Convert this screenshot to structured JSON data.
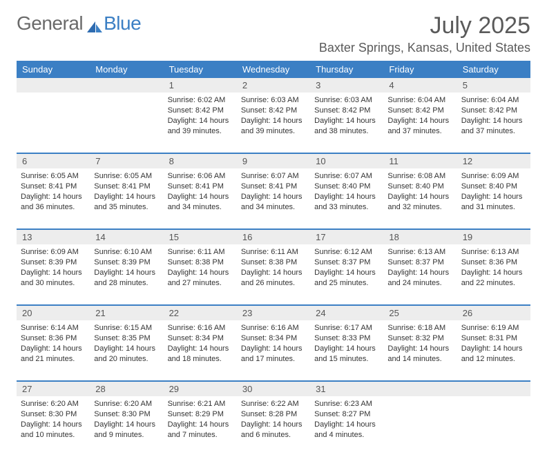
{
  "brand": {
    "word1": "General",
    "word2": "Blue"
  },
  "title": "July 2025",
  "location": "Baxter Springs, Kansas, United States",
  "colors": {
    "header_bg": "#3b7fc4",
    "header_text": "#ffffff",
    "daynum_bg": "#ededed",
    "row_divider": "#3b7fc4",
    "body_text": "#333333",
    "title_text": "#5a5a5a"
  },
  "day_headers": [
    "Sunday",
    "Monday",
    "Tuesday",
    "Wednesday",
    "Thursday",
    "Friday",
    "Saturday"
  ],
  "weeks": [
    [
      null,
      null,
      {
        "n": "1",
        "sunrise": "6:02 AM",
        "sunset": "8:42 PM",
        "daylight": "14 hours and 39 minutes."
      },
      {
        "n": "2",
        "sunrise": "6:03 AM",
        "sunset": "8:42 PM",
        "daylight": "14 hours and 39 minutes."
      },
      {
        "n": "3",
        "sunrise": "6:03 AM",
        "sunset": "8:42 PM",
        "daylight": "14 hours and 38 minutes."
      },
      {
        "n": "4",
        "sunrise": "6:04 AM",
        "sunset": "8:42 PM",
        "daylight": "14 hours and 37 minutes."
      },
      {
        "n": "5",
        "sunrise": "6:04 AM",
        "sunset": "8:42 PM",
        "daylight": "14 hours and 37 minutes."
      }
    ],
    [
      {
        "n": "6",
        "sunrise": "6:05 AM",
        "sunset": "8:41 PM",
        "daylight": "14 hours and 36 minutes."
      },
      {
        "n": "7",
        "sunrise": "6:05 AM",
        "sunset": "8:41 PM",
        "daylight": "14 hours and 35 minutes."
      },
      {
        "n": "8",
        "sunrise": "6:06 AM",
        "sunset": "8:41 PM",
        "daylight": "14 hours and 34 minutes."
      },
      {
        "n": "9",
        "sunrise": "6:07 AM",
        "sunset": "8:41 PM",
        "daylight": "14 hours and 34 minutes."
      },
      {
        "n": "10",
        "sunrise": "6:07 AM",
        "sunset": "8:40 PM",
        "daylight": "14 hours and 33 minutes."
      },
      {
        "n": "11",
        "sunrise": "6:08 AM",
        "sunset": "8:40 PM",
        "daylight": "14 hours and 32 minutes."
      },
      {
        "n": "12",
        "sunrise": "6:09 AM",
        "sunset": "8:40 PM",
        "daylight": "14 hours and 31 minutes."
      }
    ],
    [
      {
        "n": "13",
        "sunrise": "6:09 AM",
        "sunset": "8:39 PM",
        "daylight": "14 hours and 30 minutes."
      },
      {
        "n": "14",
        "sunrise": "6:10 AM",
        "sunset": "8:39 PM",
        "daylight": "14 hours and 28 minutes."
      },
      {
        "n": "15",
        "sunrise": "6:11 AM",
        "sunset": "8:38 PM",
        "daylight": "14 hours and 27 minutes."
      },
      {
        "n": "16",
        "sunrise": "6:11 AM",
        "sunset": "8:38 PM",
        "daylight": "14 hours and 26 minutes."
      },
      {
        "n": "17",
        "sunrise": "6:12 AM",
        "sunset": "8:37 PM",
        "daylight": "14 hours and 25 minutes."
      },
      {
        "n": "18",
        "sunrise": "6:13 AM",
        "sunset": "8:37 PM",
        "daylight": "14 hours and 24 minutes."
      },
      {
        "n": "19",
        "sunrise": "6:13 AM",
        "sunset": "8:36 PM",
        "daylight": "14 hours and 22 minutes."
      }
    ],
    [
      {
        "n": "20",
        "sunrise": "6:14 AM",
        "sunset": "8:36 PM",
        "daylight": "14 hours and 21 minutes."
      },
      {
        "n": "21",
        "sunrise": "6:15 AM",
        "sunset": "8:35 PM",
        "daylight": "14 hours and 20 minutes."
      },
      {
        "n": "22",
        "sunrise": "6:16 AM",
        "sunset": "8:34 PM",
        "daylight": "14 hours and 18 minutes."
      },
      {
        "n": "23",
        "sunrise": "6:16 AM",
        "sunset": "8:34 PM",
        "daylight": "14 hours and 17 minutes."
      },
      {
        "n": "24",
        "sunrise": "6:17 AM",
        "sunset": "8:33 PM",
        "daylight": "14 hours and 15 minutes."
      },
      {
        "n": "25",
        "sunrise": "6:18 AM",
        "sunset": "8:32 PM",
        "daylight": "14 hours and 14 minutes."
      },
      {
        "n": "26",
        "sunrise": "6:19 AM",
        "sunset": "8:31 PM",
        "daylight": "14 hours and 12 minutes."
      }
    ],
    [
      {
        "n": "27",
        "sunrise": "6:20 AM",
        "sunset": "8:30 PM",
        "daylight": "14 hours and 10 minutes."
      },
      {
        "n": "28",
        "sunrise": "6:20 AM",
        "sunset": "8:30 PM",
        "daylight": "14 hours and 9 minutes."
      },
      {
        "n": "29",
        "sunrise": "6:21 AM",
        "sunset": "8:29 PM",
        "daylight": "14 hours and 7 minutes."
      },
      {
        "n": "30",
        "sunrise": "6:22 AM",
        "sunset": "8:28 PM",
        "daylight": "14 hours and 6 minutes."
      },
      {
        "n": "31",
        "sunrise": "6:23 AM",
        "sunset": "8:27 PM",
        "daylight": "14 hours and 4 minutes."
      },
      null,
      null
    ]
  ],
  "labels": {
    "sunrise_prefix": "Sunrise: ",
    "sunset_prefix": "Sunset: ",
    "daylight_prefix": "Daylight: "
  }
}
